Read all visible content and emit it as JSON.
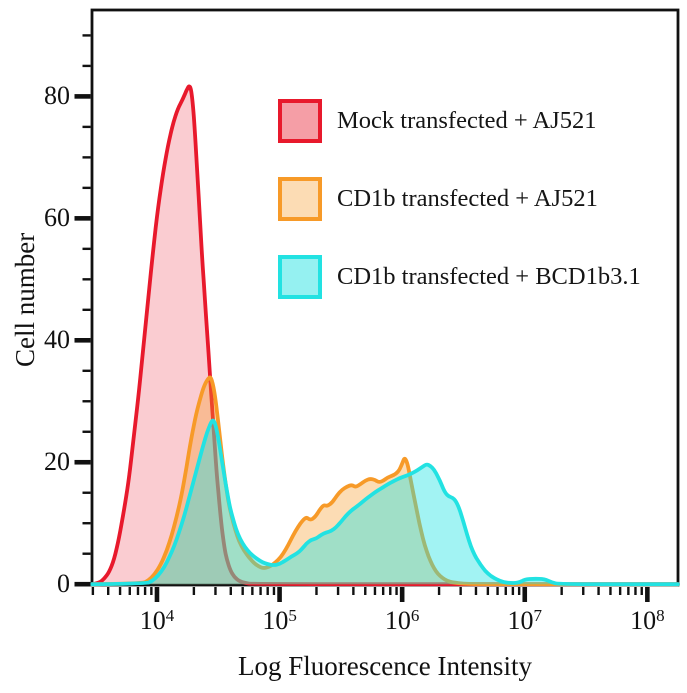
{
  "figure": {
    "background": "#ffffff",
    "axis_color": "#111111"
  },
  "chart_data": {
    "type": "area",
    "subtype": "flow-cytometry-histogram-overlay",
    "title": "",
    "xlabel": "Log Fluorescence Intensity",
    "ylabel": "Cell number",
    "x_scale": "log10",
    "xlim_log": [
      3.47,
      8.25
    ],
    "ylim": [
      0,
      94.3
    ],
    "x_ticks_exp": [
      4,
      5,
      6,
      7,
      8
    ],
    "x_minor_mantissas": [
      2,
      3,
      4,
      5,
      6,
      7,
      8,
      9
    ],
    "y_ticks": [
      0,
      20,
      40,
      60,
      80
    ],
    "y_minor_step": 5,
    "y_minor_max": 90,
    "grid": false,
    "legend_position": "upper-center",
    "series": [
      {
        "name": "Mock transfected + AJ521",
        "color": "#e8192c",
        "fill_opacity": 0.22,
        "legend_fill_opacity": 0.42,
        "peak_summary": {
          "peak_x": 18600,
          "peak_y": 82
        },
        "points": [
          [
            3.47,
            0
          ],
          [
            3.53,
            0.2
          ],
          [
            3.57,
            0.9
          ],
          [
            3.61,
            2
          ],
          [
            3.65,
            4
          ],
          [
            3.69,
            7.5
          ],
          [
            3.73,
            12
          ],
          [
            3.77,
            17
          ],
          [
            3.81,
            24
          ],
          [
            3.85,
            31
          ],
          [
            3.89,
            39
          ],
          [
            3.93,
            47
          ],
          [
            3.97,
            55
          ],
          [
            4.01,
            62
          ],
          [
            4.05,
            67.5
          ],
          [
            4.09,
            72
          ],
          [
            4.13,
            75.5
          ],
          [
            4.17,
            78
          ],
          [
            4.21,
            79.5
          ],
          [
            4.24,
            81
          ],
          [
            4.27,
            82
          ],
          [
            4.29,
            79.5
          ],
          [
            4.31,
            74
          ],
          [
            4.33,
            67
          ],
          [
            4.35,
            60
          ],
          [
            4.37,
            53
          ],
          [
            4.39,
            47
          ],
          [
            4.41,
            41
          ],
          [
            4.43,
            35
          ],
          [
            4.45,
            29
          ],
          [
            4.47,
            23
          ],
          [
            4.49,
            17.5
          ],
          [
            4.51,
            13
          ],
          [
            4.53,
            9
          ],
          [
            4.55,
            6
          ],
          [
            4.57,
            4
          ],
          [
            4.6,
            2.2
          ],
          [
            4.63,
            1.2
          ],
          [
            4.67,
            0.5
          ],
          [
            4.72,
            0.2
          ],
          [
            4.78,
            0
          ],
          [
            8.25,
            0
          ]
        ]
      },
      {
        "name": "CD1b transfected + AJ521",
        "color": "#f79a28",
        "fill_opacity": 0.35,
        "legend_fill_opacity": 0.35,
        "peak_summary": {
          "peak1_x": 27500,
          "peak1_y": 34,
          "peak2_x": 1050000,
          "peak2_y": 21
        },
        "points": [
          [
            3.47,
            0
          ],
          [
            3.88,
            0.1
          ],
          [
            3.93,
            0.6
          ],
          [
            3.98,
            1.6
          ],
          [
            4.03,
            3.2
          ],
          [
            4.08,
            5.5
          ],
          [
            4.12,
            8
          ],
          [
            4.16,
            11
          ],
          [
            4.2,
            14.5
          ],
          [
            4.24,
            19
          ],
          [
            4.28,
            24
          ],
          [
            4.32,
            28
          ],
          [
            4.36,
            31
          ],
          [
            4.39,
            32.8
          ],
          [
            4.42,
            33.8
          ],
          [
            4.44,
            34
          ],
          [
            4.46,
            32.5
          ],
          [
            4.48,
            30
          ],
          [
            4.5,
            26.5
          ],
          [
            4.52,
            23
          ],
          [
            4.54,
            19.5
          ],
          [
            4.56,
            16.5
          ],
          [
            4.58,
            13.8
          ],
          [
            4.61,
            11
          ],
          [
            4.64,
            8.8
          ],
          [
            4.67,
            7
          ],
          [
            4.71,
            5.5
          ],
          [
            4.75,
            4.4
          ],
          [
            4.79,
            3.5
          ],
          [
            4.83,
            2.9
          ],
          [
            4.87,
            2.6
          ],
          [
            4.91,
            2.8
          ],
          [
            4.95,
            3.3
          ],
          [
            4.99,
            4
          ],
          [
            5.03,
            5
          ],
          [
            5.07,
            6.4
          ],
          [
            5.11,
            8
          ],
          [
            5.15,
            9.4
          ],
          [
            5.19,
            10.5
          ],
          [
            5.22,
            11
          ],
          [
            5.25,
            10.5
          ],
          [
            5.29,
            11
          ],
          [
            5.33,
            12.3
          ],
          [
            5.36,
            13
          ],
          [
            5.39,
            12.8
          ],
          [
            5.43,
            13.4
          ],
          [
            5.47,
            14.6
          ],
          [
            5.51,
            15.5
          ],
          [
            5.55,
            16
          ],
          [
            5.59,
            16.3
          ],
          [
            5.62,
            15.9
          ],
          [
            5.66,
            16.4
          ],
          [
            5.7,
            17
          ],
          [
            5.74,
            17.3
          ],
          [
            5.78,
            17.1
          ],
          [
            5.81,
            16.7
          ],
          [
            5.85,
            17
          ],
          [
            5.88,
            17.5
          ],
          [
            5.92,
            17.8
          ],
          [
            5.95,
            18.1
          ],
          [
            5.98,
            18.8
          ],
          [
            6.0,
            19.8
          ],
          [
            6.02,
            20.8
          ],
          [
            6.04,
            20
          ],
          [
            6.06,
            18.2
          ],
          [
            6.08,
            16
          ],
          [
            6.11,
            13
          ],
          [
            6.14,
            10
          ],
          [
            6.17,
            7.4
          ],
          [
            6.2,
            5.4
          ],
          [
            6.23,
            3.8
          ],
          [
            6.26,
            2.6
          ],
          [
            6.29,
            1.7
          ],
          [
            6.33,
            1
          ],
          [
            6.37,
            0.5
          ],
          [
            6.42,
            0.25
          ],
          [
            6.5,
            0.1
          ],
          [
            6.6,
            0
          ],
          [
            8.25,
            0
          ]
        ]
      },
      {
        "name": "CD1b transfected + BCD1b3.1",
        "color": "#22e2e2",
        "fill_opacity": 0.42,
        "legend_fill_opacity": 0.48,
        "peak_summary": {
          "peak1_x": 29000,
          "peak1_y": 27,
          "peak2_x": 1580000,
          "peak2_y": 19.7
        },
        "points": [
          [
            3.47,
            0
          ],
          [
            3.91,
            0.1
          ],
          [
            3.96,
            0.5
          ],
          [
            4.01,
            1.4
          ],
          [
            4.06,
            2.8
          ],
          [
            4.1,
            4.4
          ],
          [
            4.14,
            6.2
          ],
          [
            4.18,
            8.5
          ],
          [
            4.22,
            11
          ],
          [
            4.26,
            14
          ],
          [
            4.3,
            17
          ],
          [
            4.34,
            20
          ],
          [
            4.38,
            23
          ],
          [
            4.41,
            25
          ],
          [
            4.44,
            26.5
          ],
          [
            4.46,
            27
          ],
          [
            4.48,
            26
          ],
          [
            4.5,
            24
          ],
          [
            4.52,
            21.5
          ],
          [
            4.54,
            19
          ],
          [
            4.56,
            16.5
          ],
          [
            4.58,
            14.2
          ],
          [
            4.6,
            12.2
          ],
          [
            4.63,
            10
          ],
          [
            4.66,
            8.2
          ],
          [
            4.7,
            6.6
          ],
          [
            4.74,
            5.5
          ],
          [
            4.78,
            4.7
          ],
          [
            4.82,
            4.1
          ],
          [
            4.86,
            3.6
          ],
          [
            4.9,
            3.3
          ],
          [
            4.95,
            3.1
          ],
          [
            5.0,
            3.3
          ],
          [
            5.05,
            3.9
          ],
          [
            5.1,
            4.6
          ],
          [
            5.14,
            5
          ],
          [
            5.18,
            5.7
          ],
          [
            5.22,
            6.7
          ],
          [
            5.26,
            7.3
          ],
          [
            5.3,
            7.5
          ],
          [
            5.34,
            8.1
          ],
          [
            5.38,
            8.5
          ],
          [
            5.42,
            8.7
          ],
          [
            5.46,
            9.3
          ],
          [
            5.5,
            10.2
          ],
          [
            5.54,
            11.2
          ],
          [
            5.58,
            12
          ],
          [
            5.62,
            12.6
          ],
          [
            5.66,
            13.2
          ],
          [
            5.7,
            13.9
          ],
          [
            5.74,
            14.5
          ],
          [
            5.78,
            15.1
          ],
          [
            5.82,
            15.6
          ],
          [
            5.86,
            16.1
          ],
          [
            5.9,
            16.6
          ],
          [
            5.94,
            17
          ],
          [
            5.98,
            17.4
          ],
          [
            6.02,
            17.7
          ],
          [
            6.06,
            18
          ],
          [
            6.1,
            18.4
          ],
          [
            6.14,
            18.9
          ],
          [
            6.17,
            19.3
          ],
          [
            6.2,
            19.7
          ],
          [
            6.23,
            19.4
          ],
          [
            6.26,
            18.8
          ],
          [
            6.29,
            17.7
          ],
          [
            6.32,
            16.4
          ],
          [
            6.35,
            15
          ],
          [
            6.38,
            14.4
          ],
          [
            6.41,
            14.2
          ],
          [
            6.44,
            13.6
          ],
          [
            6.47,
            12.2
          ],
          [
            6.5,
            10.2
          ],
          [
            6.53,
            8.1
          ],
          [
            6.56,
            6.2
          ],
          [
            6.59,
            4.8
          ],
          [
            6.62,
            3.8
          ],
          [
            6.66,
            2.6
          ],
          [
            6.7,
            1.7
          ],
          [
            6.75,
            1
          ],
          [
            6.8,
            0.5
          ],
          [
            6.86,
            0.2
          ],
          [
            6.95,
            0.2
          ],
          [
            7.0,
            0.8
          ],
          [
            7.08,
            0.9
          ],
          [
            7.16,
            0.85
          ],
          [
            7.22,
            0.3
          ],
          [
            7.28,
            0
          ],
          [
            8.25,
            0
          ]
        ]
      }
    ]
  }
}
